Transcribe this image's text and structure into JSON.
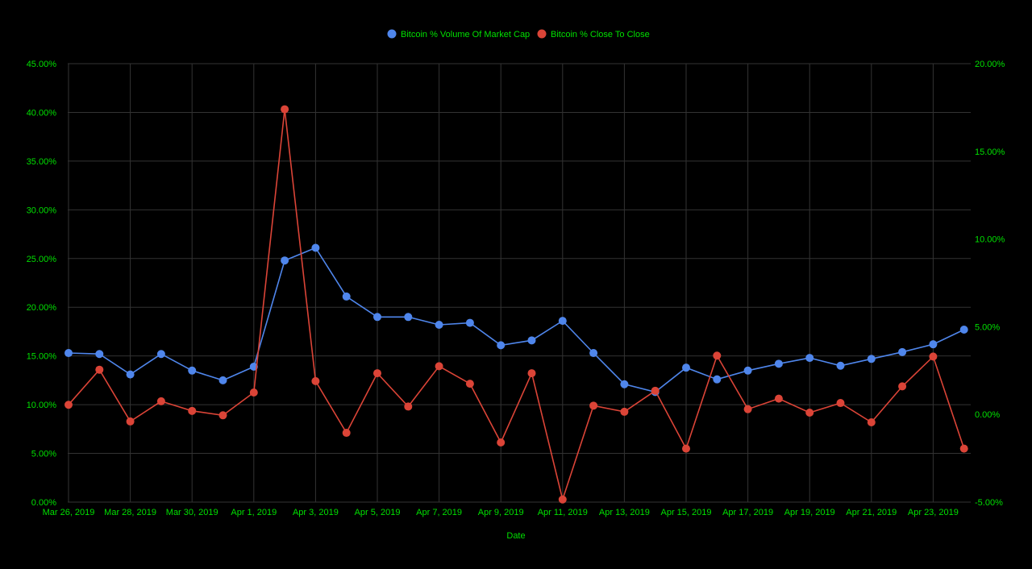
{
  "chart_data": {
    "type": "line",
    "xlabel": "Date",
    "x": [
      "Mar 26, 2019",
      "Mar 27, 2019",
      "Mar 28, 2019",
      "Mar 29, 2019",
      "Mar 30, 2019",
      "Mar 31, 2019",
      "Apr 1, 2019",
      "Apr 2, 2019",
      "Apr 3, 2019",
      "Apr 4, 2019",
      "Apr 5, 2019",
      "Apr 6, 2019",
      "Apr 7, 2019",
      "Apr 8, 2019",
      "Apr 9, 2019",
      "Apr 10, 2019",
      "Apr 11, 2019",
      "Apr 12, 2019",
      "Apr 13, 2019",
      "Apr 14, 2019",
      "Apr 15, 2019",
      "Apr 16, 2019",
      "Apr 17, 2019",
      "Apr 18, 2019",
      "Apr 19, 2019",
      "Apr 20, 2019",
      "Apr 21, 2019",
      "Apr 22, 2019",
      "Apr 23, 2019",
      "Apr 24, 2019"
    ],
    "x_tick_labels": [
      "Mar 26, 2019",
      "Mar 28, 2019",
      "Mar 30, 2019",
      "Apr 1, 2019",
      "Apr 3, 2019",
      "Apr 5, 2019",
      "Apr 7, 2019",
      "Apr 9, 2019",
      "Apr 11, 2019",
      "Apr 13, 2019",
      "Apr 15, 2019",
      "Apr 17, 2019",
      "Apr 19, 2019",
      "Apr 21, 2019",
      "Apr 23, 2019"
    ],
    "y_left": {
      "ylim": [
        0,
        45
      ],
      "ticks": [
        "0.00%",
        "5.00%",
        "10.00%",
        "15.00%",
        "20.00%",
        "25.00%",
        "30.00%",
        "35.00%",
        "40.00%",
        "45.00%"
      ]
    },
    "y_right": {
      "ylim": [
        -5,
        20
      ],
      "ticks": [
        "-5.00%",
        "0.00%",
        "5.00%",
        "10.00%",
        "15.00%",
        "20.00%"
      ]
    },
    "grid": true,
    "legend_position": "top",
    "series": [
      {
        "name": "Bitcoin % Volume Of Market Cap",
        "axis": "left",
        "color": "#4f86ec",
        "values": [
          15.3,
          15.2,
          13.1,
          15.2,
          13.5,
          12.5,
          13.9,
          24.8,
          26.1,
          21.1,
          19.0,
          19.0,
          18.2,
          18.4,
          16.1,
          16.6,
          18.6,
          15.3,
          12.1,
          11.3,
          13.8,
          12.6,
          13.5,
          14.2,
          14.8,
          14.0,
          14.7,
          15.4,
          16.2,
          17.7
        ]
      },
      {
        "name": "Bitcoin % Close To Close",
        "axis": "right",
        "color": "#db4437",
        "values": [
          0.55,
          2.55,
          -0.4,
          0.75,
          0.2,
          -0.05,
          1.25,
          17.4,
          1.9,
          -1.05,
          2.35,
          0.45,
          2.75,
          1.75,
          -1.6,
          2.35,
          -4.85,
          0.5,
          0.15,
          1.35,
          -1.95,
          3.35,
          0.3,
          0.9,
          0.1,
          0.65,
          -0.45,
          1.6,
          3.3,
          -1.95
        ]
      }
    ]
  }
}
